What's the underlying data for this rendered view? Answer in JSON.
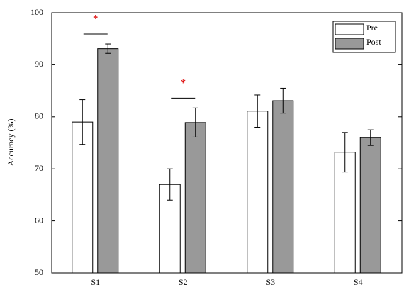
{
  "chart_data": {
    "type": "bar",
    "y_label": "Accuracy (%)",
    "categories": [
      "S1",
      "S2",
      "S3",
      "S4"
    ],
    "series": [
      {
        "name": "Pre",
        "color": "#ffffff",
        "values": [
          79.0,
          67.0,
          81.1,
          73.2
        ],
        "errors": [
          4.3,
          3.0,
          3.1,
          3.8
        ]
      },
      {
        "name": "Post",
        "color": "#999999",
        "values": [
          93.1,
          78.9,
          83.1,
          76.0
        ],
        "errors": [
          0.9,
          2.8,
          2.4,
          1.5
        ]
      }
    ],
    "significance": [
      {
        "category": "S1",
        "label": "*"
      },
      {
        "category": "S2",
        "label": "*"
      }
    ],
    "significance_color": "#dd0000",
    "ylim": [
      50,
      100
    ],
    "yticks": [
      50,
      60,
      70,
      80,
      90,
      100
    ],
    "grid": false,
    "legend": "upper right"
  }
}
